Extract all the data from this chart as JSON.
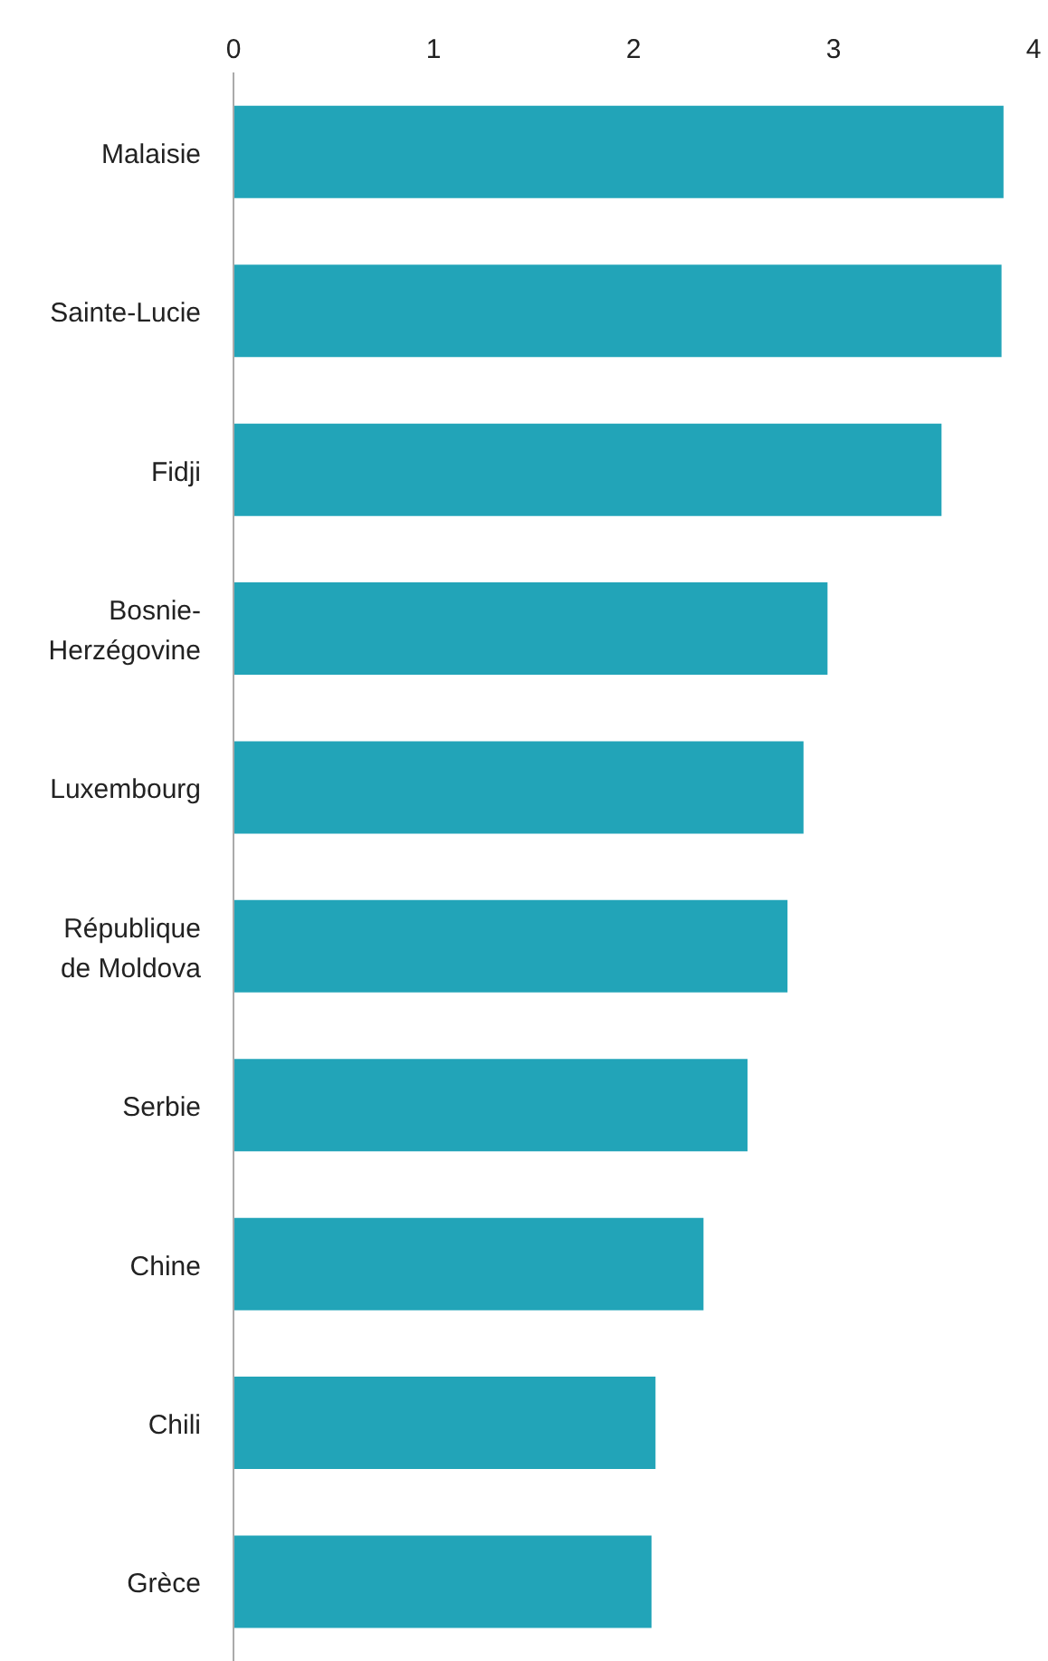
{
  "chart_data": {
    "type": "bar",
    "orientation": "horizontal",
    "categories": [
      "Malaisie",
      "Sainte-Lucie",
      "Fidji",
      "Bosnie-Herzégovine",
      "Luxembourg",
      "République de Moldova",
      "Serbie",
      "Chine",
      "Chili",
      "Grèce"
    ],
    "values": [
      3.85,
      3.84,
      3.54,
      2.97,
      2.85,
      2.77,
      2.57,
      2.35,
      2.11,
      2.09
    ],
    "color": "#22a4b8",
    "xlim": [
      0,
      4
    ],
    "xticks": [
      0,
      1,
      2,
      3,
      4
    ],
    "grid": false,
    "legend": false
  }
}
